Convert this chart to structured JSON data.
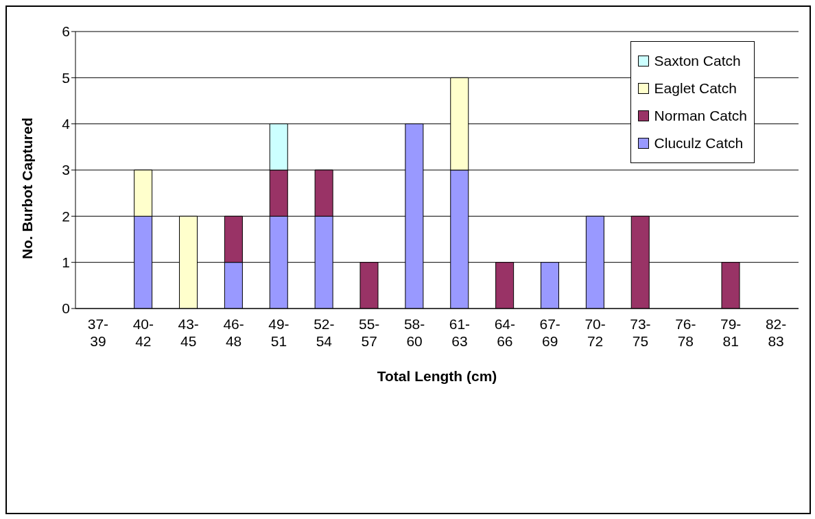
{
  "chart_data": {
    "type": "bar",
    "stacked": true,
    "xlabel": "Total Length (cm)",
    "ylabel": "No. Burbot Captured",
    "categories": [
      "37-39",
      "40-42",
      "43-45",
      "46-48",
      "49-51",
      "52-54",
      "55-57",
      "58-60",
      "61-63",
      "64-66",
      "67-69",
      "70-72",
      "73-75",
      "76-78",
      "79-81",
      "82-83"
    ],
    "series": [
      {
        "name": "Cluculz Catch",
        "color": "#9999ff",
        "values": [
          null,
          2,
          null,
          1,
          2,
          2,
          null,
          4,
          3,
          null,
          1,
          2,
          null,
          null,
          null,
          null
        ]
      },
      {
        "name": "Norman Catch",
        "color": "#993366",
        "values": [
          null,
          null,
          null,
          1,
          1,
          1,
          1,
          null,
          null,
          1,
          null,
          null,
          2,
          null,
          1,
          null
        ]
      },
      {
        "name": "Eaglet Catch",
        "color": "#ffffcc",
        "values": [
          null,
          1,
          2,
          null,
          null,
          null,
          null,
          null,
          2,
          null,
          null,
          null,
          null,
          null,
          null,
          null
        ]
      },
      {
        "name": "Saxton Catch",
        "color": "#ccffff",
        "values": [
          null,
          null,
          null,
          null,
          1,
          null,
          null,
          null,
          null,
          null,
          null,
          null,
          null,
          null,
          null,
          null
        ]
      }
    ],
    "ylim": [
      0,
      6
    ],
    "yticks": [
      0,
      1,
      2,
      3,
      4,
      5,
      6
    ],
    "grid": "y",
    "legend": "top right"
  }
}
